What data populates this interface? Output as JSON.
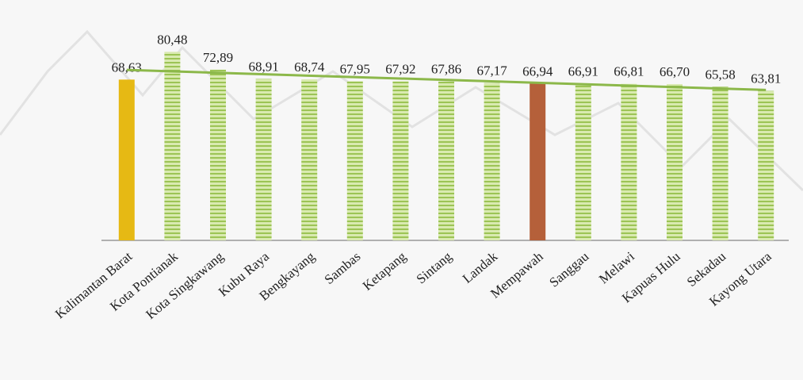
{
  "chart_data": {
    "type": "bar",
    "categories": [
      "Kalimantan Barat",
      "Kota Pontianak",
      "Kota Singkawang",
      "Kubu Raya",
      "Bengkayang",
      "Sambas",
      "Ketapang",
      "Sintang",
      "Landak",
      "Mempawah",
      "Sanggau",
      "Melawi",
      "Kapuas Hulu",
      "Sekadau",
      "Kayong Utara"
    ],
    "values": [
      68.63,
      80.48,
      72.89,
      68.91,
      68.74,
      67.95,
      67.92,
      67.86,
      67.17,
      66.94,
      66.91,
      66.81,
      66.7,
      65.58,
      63.81
    ],
    "value_labels": [
      "68,63",
      "80,48",
      "72,89",
      "68,91",
      "68,74",
      "67,95",
      "67,92",
      "67,86",
      "67,17",
      "66,94",
      "66,91",
      "66,81",
      "66,70",
      "65,58",
      "63,81"
    ],
    "colors": [
      "#e6b914",
      "#b3d36b",
      "#b3d36b",
      "#b3d36b",
      "#b3d36b",
      "#b3d36b",
      "#b3d36b",
      "#b3d36b",
      "#b3d36b",
      "#b5603a",
      "#b3d36b",
      "#b3d36b",
      "#b3d36b",
      "#b3d36b",
      "#b3d36b"
    ],
    "ylim": [
      0,
      85
    ],
    "trendline": true,
    "trendline_color": "#8cb84a"
  }
}
